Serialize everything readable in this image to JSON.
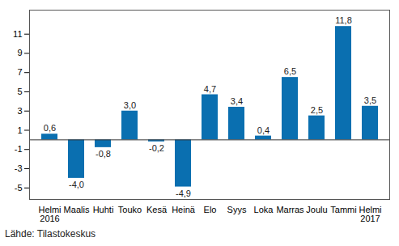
{
  "chart_data": {
    "type": "bar",
    "categories": [
      "Helmi\n2016",
      "Maalis",
      "Huhti",
      "Touko",
      "Kesä",
      "Heinä",
      "Elo",
      "Syys",
      "Loka",
      "Marras",
      "Joulu",
      "Tammi",
      "Helmi\n2017"
    ],
    "values": [
      0.6,
      -4.0,
      -0.8,
      3.0,
      -0.2,
      -4.9,
      4.7,
      3.4,
      0.4,
      6.5,
      2.5,
      11.8,
      3.5
    ],
    "value_labels": [
      "0,6",
      "-4,0",
      "-0,8",
      "3,0",
      "-0,2",
      "-4,9",
      "4,7",
      "3,4",
      "0,4",
      "6,5",
      "2,5",
      "11,8",
      "3,5"
    ],
    "data_labels": true,
    "color": "#0a6fb0",
    "ylim": [
      -6.2,
      13.5
    ],
    "yticks": [
      -5,
      -3,
      -1,
      1,
      3,
      5,
      7,
      9,
      11
    ],
    "grid": false,
    "caption": "Lähde: Tilastokeskus"
  }
}
